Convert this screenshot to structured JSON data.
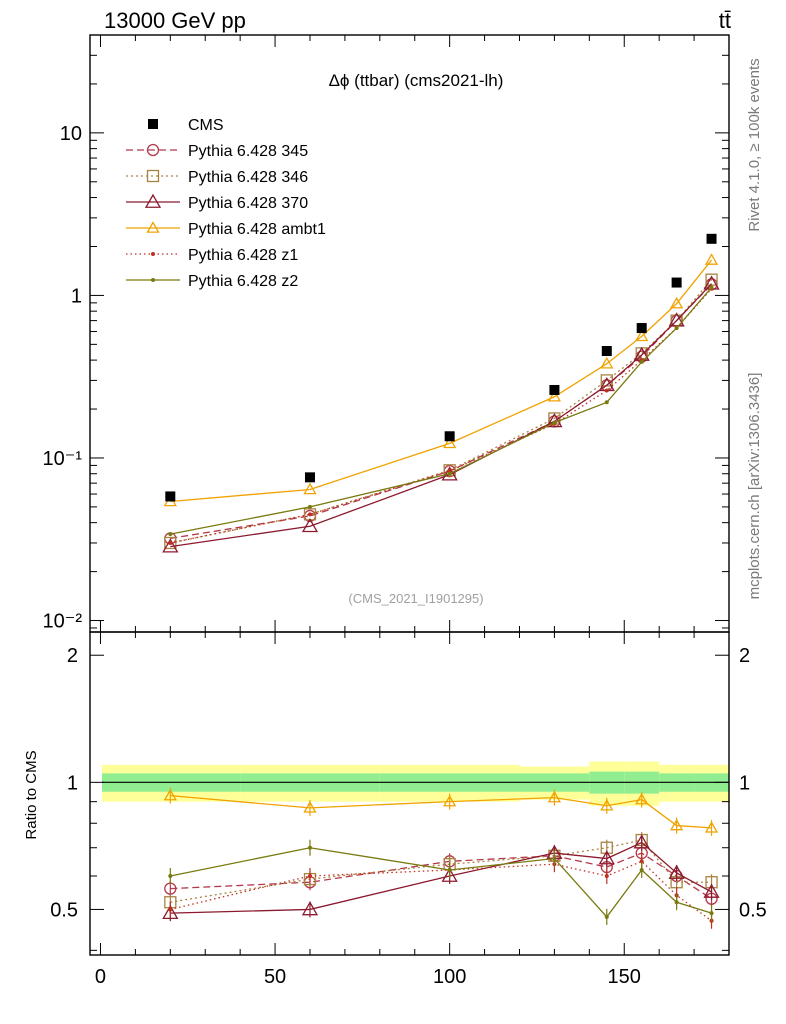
{
  "header": {
    "energy": "13000 GeV pp",
    "process": "tt̄"
  },
  "side_labels": {
    "rivet": "Rivet 4.1.0, ≥ 100k events",
    "source": "mcplots.cern.ch [arXiv:1306.3436]"
  },
  "chart_data": {
    "type": "line",
    "title": "Δϕ (ttbar) (cms2021-lh)",
    "watermark": "(CMS_2021_I1901295)",
    "xlabel": "",
    "ylabel_main": "",
    "ylabel_ratio": "Ratio to CMS",
    "x": [
      20,
      60,
      100,
      130,
      145,
      155,
      165,
      175
    ],
    "xlim": [
      -3,
      180
    ],
    "main_ylim": [
      0.0085,
      40
    ],
    "main_yscale": "log",
    "ratio_ylim": [
      0.39,
      2.27
    ],
    "ratio_yscale": "log",
    "x_ticks": [
      0,
      50,
      100,
      150
    ],
    "x_tick_labels": [
      "0",
      "50",
      "100",
      "150"
    ],
    "main_y_ticks": [
      0.01,
      0.1,
      1,
      10
    ],
    "main_y_tick_labels": [
      "10⁻²",
      "10⁻¹",
      "1",
      "10"
    ],
    "ratio_y_ticks": [
      0.5,
      1,
      2
    ],
    "ratio_y_tick_labels": [
      "0.5",
      "1",
      "2"
    ],
    "bins": [
      0,
      40,
      80,
      120,
      140,
      150,
      160,
      170,
      180
    ],
    "data": {
      "name": "CMS",
      "values": [
        0.058,
        0.076,
        0.136,
        0.262,
        0.455,
        0.63,
        1.2,
        2.23
      ]
    },
    "band_inner": [
      0.05,
      0.05,
      0.05,
      0.05,
      0.06,
      0.06,
      0.05,
      0.05
    ],
    "band_outer": [
      0.1,
      0.1,
      0.1,
      0.09,
      0.12,
      0.12,
      0.1,
      0.1
    ],
    "series": [
      {
        "name": "Pythia 6.428 345",
        "color": "#b5384a",
        "marker": "circle",
        "dash": "7 4",
        "values": [
          0.032,
          0.044,
          0.083,
          0.168,
          0.28,
          0.42,
          0.7,
          1.17
        ],
        "ratio": [
          0.56,
          0.58,
          0.65,
          0.67,
          0.63,
          0.68,
          0.6,
          0.53
        ]
      },
      {
        "name": "Pythia 6.428 346",
        "color": "#a88442",
        "marker": "square",
        "dash": "2 3",
        "values": [
          0.03,
          0.045,
          0.084,
          0.175,
          0.3,
          0.44,
          0.7,
          1.25
        ],
        "ratio": [
          0.52,
          0.59,
          0.64,
          0.67,
          0.7,
          0.73,
          0.58,
          0.58
        ]
      },
      {
        "name": "Pythia 6.428 370",
        "color": "#8b1a2e",
        "marker": "triangle",
        "dash": "",
        "values": [
          0.0285,
          0.038,
          0.079,
          0.168,
          0.28,
          0.43,
          0.7,
          1.18
        ],
        "ratio": [
          0.49,
          0.5,
          0.6,
          0.68,
          0.66,
          0.72,
          0.61,
          0.55
        ]
      },
      {
        "name": "Pythia 6.428 ambt1",
        "color": "#f0a200",
        "marker": "triangle-open",
        "dash": "",
        "values": [
          0.054,
          0.064,
          0.123,
          0.238,
          0.38,
          0.56,
          0.89,
          1.65
        ],
        "ratio": [
          0.93,
          0.87,
          0.9,
          0.92,
          0.88,
          0.91,
          0.79,
          0.78
        ]
      },
      {
        "name": "Pythia 6.428 z1",
        "color": "#c03020",
        "marker": "dot",
        "dash": "1.5 3",
        "values": [
          0.03,
          0.045,
          0.083,
          0.162,
          0.26,
          0.4,
          0.63,
          1.1
        ],
        "ratio": [
          0.5,
          0.6,
          0.62,
          0.64,
          0.6,
          0.65,
          0.54,
          0.47
        ]
      },
      {
        "name": "Pythia 6.428 z2",
        "color": "#7a7a10",
        "marker": "dot",
        "dash": "",
        "values": [
          0.034,
          0.05,
          0.08,
          0.165,
          0.22,
          0.39,
          0.63,
          1.12
        ],
        "ratio": [
          0.6,
          0.7,
          0.62,
          0.66,
          0.48,
          0.62,
          0.52,
          0.49
        ]
      }
    ]
  }
}
